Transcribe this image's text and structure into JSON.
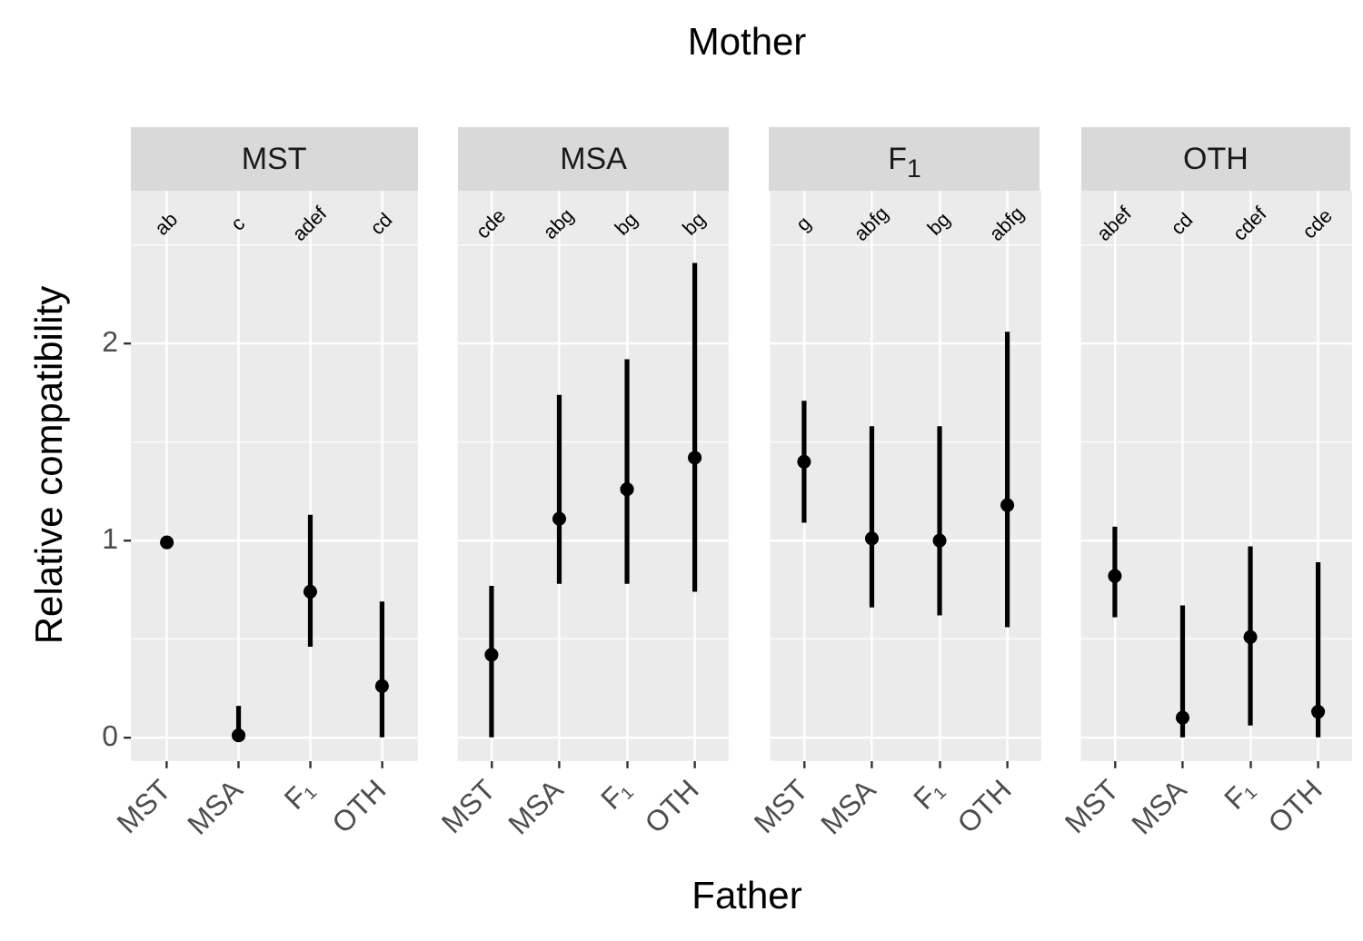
{
  "chart_data": [
    {
      "type": "scatter",
      "subtitle": "MST",
      "ylabel": "Relative compatibility",
      "categories": [
        "MST",
        "MSA",
        "F₁",
        "OTH"
      ],
      "values": [
        0.99,
        0.01,
        0.74,
        0.26
      ],
      "errors": [
        null,
        [
          0,
          0.16
        ],
        [
          0.46,
          1.13
        ],
        [
          0,
          0.69
        ]
      ],
      "color": "#000000",
      "marker": "circle",
      "ylim": [
        -0.12,
        2.78
      ],
      "yticks": [
        0,
        1,
        2
      ],
      "grid": true,
      "annotations": [
        "ab",
        "c",
        "adef",
        "cd",
        "Mother",
        "Father"
      ]
    },
    {
      "type": "scatter",
      "subtitle": "MSA",
      "categories": [
        "MST",
        "MSA",
        "F₁",
        "OTH"
      ],
      "values": [
        0.42,
        1.11,
        1.26,
        1.42
      ],
      "errors": [
        [
          0,
          0.77
        ],
        [
          0.78,
          1.74
        ],
        [
          0.78,
          1.92
        ],
        [
          0.74,
          2.41
        ]
      ],
      "color": "#000000",
      "marker": "circle",
      "ylim": [
        -0.12,
        2.78
      ],
      "yticks": [
        0,
        1,
        2
      ],
      "grid": true,
      "tick_labels": "x",
      "annotations": [
        "cde",
        "abg",
        "bg",
        "bg"
      ]
    },
    {
      "type": "scatter",
      "subtitle": "F$_{1}$",
      "categories": [
        "MST",
        "MSA",
        "F₁",
        "OTH"
      ],
      "values": [
        1.4,
        1.01,
        1.0,
        1.18
      ],
      "errors": [
        [
          1.09,
          1.71
        ],
        [
          0.66,
          1.58
        ],
        [
          0.62,
          1.58
        ],
        [
          0.56,
          2.06
        ]
      ],
      "color": "#000000",
      "marker": "circle",
      "ylim": [
        -0.12,
        2.78
      ],
      "yticks": [
        0,
        1,
        2
      ],
      "grid": true,
      "tick_labels": "x",
      "annotations": [
        "g",
        "abfg",
        "bg",
        "abfg"
      ]
    },
    {
      "type": "scatter",
      "subtitle": "OTH",
      "categories": [
        "MST",
        "MSA",
        "F₁",
        "OTH"
      ],
      "values": [
        0.82,
        0.1,
        0.51,
        0.13
      ],
      "errors": [
        [
          0.61,
          1.07
        ],
        [
          0,
          0.67
        ],
        [
          0.06,
          0.97
        ],
        [
          0,
          0.89
        ]
      ],
      "color": "#000000",
      "marker": "circle",
      "ylim": [
        -0.12,
        2.78
      ],
      "yticks": [
        0,
        1,
        2
      ],
      "grid": true,
      "tick_labels": "x",
      "annotations": [
        "abef",
        "cd",
        "cdef",
        "cde"
      ]
    }
  ]
}
